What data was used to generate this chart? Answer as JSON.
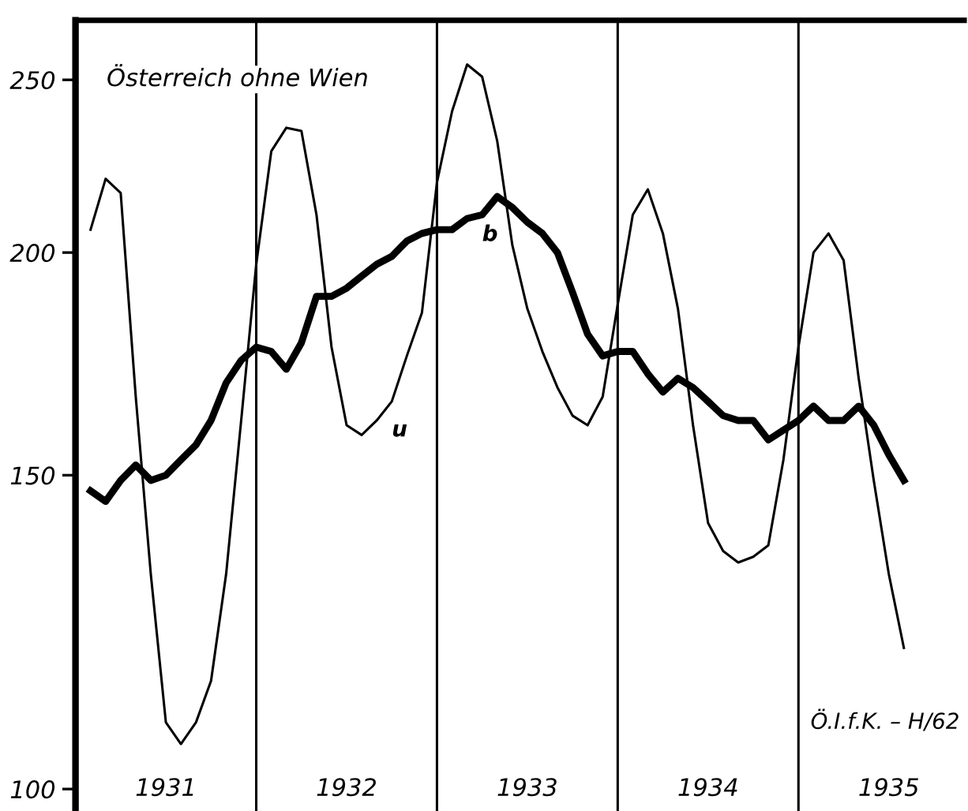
{
  "chart_data": {
    "type": "line",
    "title": "Österreich ohne Wien",
    "annotations": [
      "Ö.I.f.K. – H/62"
    ],
    "x": [
      "1931-02",
      "1931-03",
      "1931-04",
      "1931-05",
      "1931-06",
      "1931-07",
      "1931-08",
      "1931-09",
      "1931-10",
      "1931-11",
      "1931-12",
      "1932-01",
      "1932-02",
      "1932-03",
      "1932-04",
      "1932-05",
      "1932-06",
      "1932-07",
      "1932-08",
      "1932-09",
      "1932-10",
      "1932-11",
      "1932-12",
      "1933-01",
      "1933-02",
      "1933-03",
      "1933-04",
      "1933-05",
      "1933-06",
      "1933-07",
      "1933-08",
      "1933-09",
      "1933-10",
      "1933-11",
      "1933-12",
      "1934-01",
      "1934-02",
      "1934-03",
      "1934-04",
      "1934-05",
      "1934-06",
      "1934-07",
      "1934-08",
      "1934-09",
      "1934-10",
      "1934-11",
      "1934-12",
      "1935-01",
      "1935-02",
      "1935-03",
      "1935-04",
      "1935-05",
      "1935-06",
      "1935-07",
      "1935-08"
    ],
    "series": [
      {
        "name": "u",
        "color": "#000000",
        "values": [
          206,
          220,
          216,
          166,
          132,
          109,
          106,
          109,
          115,
          132,
          161,
          197,
          228,
          235,
          234,
          210,
          177,
          160,
          158,
          161,
          165,
          175,
          185,
          219,
          240,
          255,
          251,
          231,
          202,
          186,
          176,
          168,
          162,
          160,
          166,
          187,
          210,
          217,
          205,
          186,
          160,
          141,
          136,
          134,
          135,
          137,
          153,
          177,
          200,
          205,
          198,
          170,
          149,
          132,
          120
        ]
      },
      {
        "name": "b",
        "color": "#000000",
        "values": [
          147,
          145,
          149,
          152,
          149,
          150,
          153,
          156,
          161,
          169,
          174,
          177,
          176,
          172,
          178,
          189,
          189,
          191,
          194,
          197,
          199,
          203,
          205,
          206,
          206,
          209,
          210,
          215,
          212,
          208,
          205,
          200,
          190,
          180,
          175,
          176,
          176,
          171,
          167,
          170,
          168,
          165,
          162,
          161,
          161,
          157,
          159,
          161,
          164,
          161,
          161,
          164,
          160,
          154,
          149
        ]
      }
    ],
    "log": "y",
    "xlim": [
      "1931-01",
      "1935-12"
    ],
    "xticks": [
      {
        "value": "1931-07",
        "label": "1931"
      },
      {
        "value": "1932-07",
        "label": "1932"
      },
      {
        "value": "1933-07",
        "label": "1933"
      },
      {
        "value": "1934-07",
        "label": "1934"
      },
      {
        "value": "1935-07",
        "label": "1935"
      }
    ],
    "ylim": [
      97,
      270
    ],
    "yticks": [
      100,
      150,
      200,
      250
    ],
    "ref_lines": [
      {
        "axis": "x",
        "value": "1932-01",
        "color": "#000000"
      },
      {
        "axis": "x",
        "value": "1933-01",
        "color": "#000000"
      },
      {
        "axis": "x",
        "value": "1934-01",
        "color": "#000000"
      },
      {
        "axis": "x",
        "value": "1935-01",
        "color": "#000000"
      }
    ],
    "grid": false,
    "line_style": "solid"
  }
}
